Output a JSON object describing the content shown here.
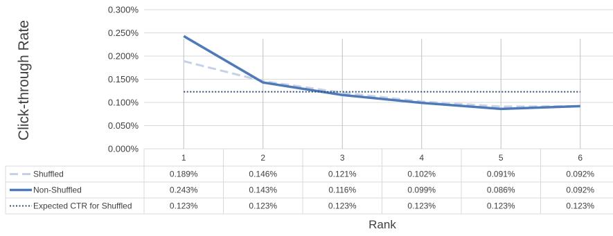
{
  "chart_data": {
    "type": "line",
    "ylabel": "Click-through Rate",
    "xlabel": "Rank",
    "ylim": [
      0,
      0.3
    ],
    "y_ticks": [
      "0.000%",
      "0.050%",
      "0.100%",
      "0.150%",
      "0.200%",
      "0.250%",
      "0.300%"
    ],
    "categories": [
      "1",
      "2",
      "3",
      "4",
      "5",
      "6"
    ],
    "grid": true,
    "legend": "data-table",
    "series": [
      {
        "name": "Shuffled",
        "color": "#c5d1e6",
        "style": "dashed",
        "values": [
          0.189,
          0.146,
          0.121,
          0.102,
          0.091,
          0.092
        ],
        "labels": [
          "0.189%",
          "0.146%",
          "0.121%",
          "0.102%",
          "0.091%",
          "0.092%"
        ]
      },
      {
        "name": "Non-Shuffled",
        "color": "#4f7ab8",
        "style": "solid",
        "values": [
          0.243,
          0.143,
          0.116,
          0.099,
          0.086,
          0.092
        ],
        "labels": [
          "0.243%",
          "0.143%",
          "0.116%",
          "0.099%",
          "0.086%",
          "0.092%"
        ]
      },
      {
        "name": "Expected CTR for Shuffled",
        "color": "#2d4a70",
        "style": "dotted",
        "values": [
          0.123,
          0.123,
          0.123,
          0.123,
          0.123,
          0.123
        ],
        "labels": [
          "0.123%",
          "0.123%",
          "0.123%",
          "0.123%",
          "0.123%",
          "0.123%"
        ]
      }
    ]
  }
}
